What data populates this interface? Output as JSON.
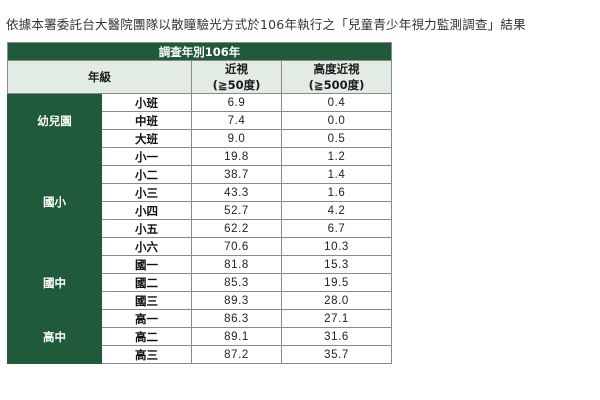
{
  "intro_text": "依據本署委託台大醫院團隊以散瞳驗光方式於106年執行之「兒童青少年視力監測調查」結果",
  "table": {
    "title": "調查年別106年",
    "col_grade": "年級",
    "col_myopia": "近視",
    "col_myopia_unit": "(≧50度)",
    "col_high": "高度近視",
    "col_high_unit": "(≧500度)",
    "groups": [
      {
        "name": "幼兒園",
        "rows": [
          {
            "grade": "小班",
            "myopia": "6.9",
            "high": "0.4"
          },
          {
            "grade": "中班",
            "myopia": "7.4",
            "high": "0.0"
          },
          {
            "grade": "大班",
            "myopia": "9.0",
            "high": "0.5"
          }
        ]
      },
      {
        "name": "國小",
        "rows": [
          {
            "grade": "小一",
            "myopia": "19.8",
            "high": "1.2"
          },
          {
            "grade": "小二",
            "myopia": "38.7",
            "high": "1.4"
          },
          {
            "grade": "小三",
            "myopia": "43.3",
            "high": "1.6"
          },
          {
            "grade": "小四",
            "myopia": "52.7",
            "high": "4.2"
          },
          {
            "grade": "小五",
            "myopia": "62.2",
            "high": "6.7"
          },
          {
            "grade": "小六",
            "myopia": "70.6",
            "high": "10.3"
          }
        ]
      },
      {
        "name": "國中",
        "rows": [
          {
            "grade": "國一",
            "myopia": "81.8",
            "high": "15.3"
          },
          {
            "grade": "國二",
            "myopia": "85.3",
            "high": "19.5"
          },
          {
            "grade": "國三",
            "myopia": "89.3",
            "high": "28.0"
          }
        ]
      },
      {
        "name": "高中",
        "rows": [
          {
            "grade": "高一",
            "myopia": "86.3",
            "high": "27.1"
          },
          {
            "grade": "高二",
            "myopia": "89.1",
            "high": "31.6"
          },
          {
            "grade": "高三",
            "myopia": "87.2",
            "high": "35.7"
          }
        ]
      }
    ]
  }
}
